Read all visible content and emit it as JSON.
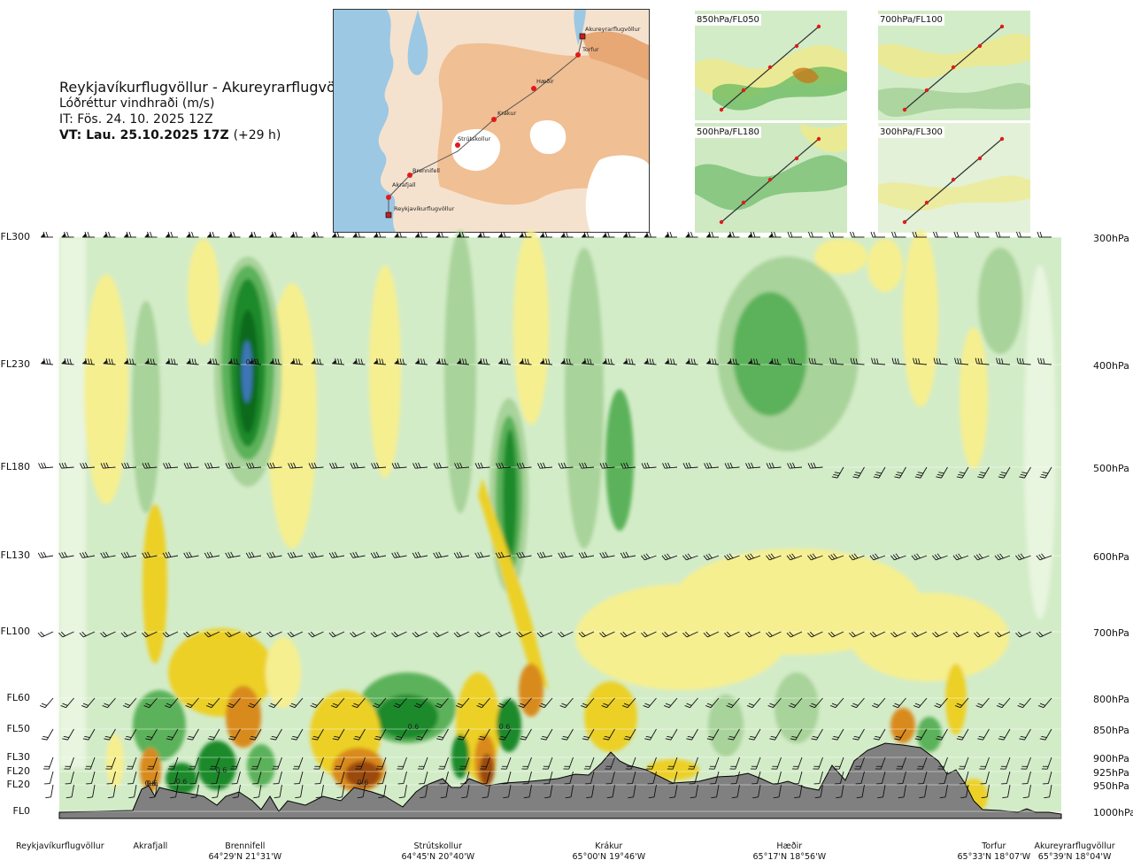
{
  "title": {
    "route": "Reykjavíkurflugvöllur - Akureyrarflugvöllur",
    "variable": "Lóðréttur vindhraði (m/s)",
    "issue_time": "IT: Fös. 24. 10. 2025 12Z",
    "valid_time": "VT: Lau. 25.10.2025 17Z",
    "lead": "(+29 h)"
  },
  "route_map": {
    "waypoints": [
      {
        "name": "Akureyrarflugvöllur",
        "type": "airport"
      },
      {
        "name": "Torfur",
        "type": "point"
      },
      {
        "name": "Hæðir",
        "type": "point"
      },
      {
        "name": "Krákur",
        "type": "point"
      },
      {
        "name": "Strútskollur",
        "type": "point"
      },
      {
        "name": "Brennifell",
        "type": "point"
      },
      {
        "name": "Akrafjall",
        "type": "point"
      },
      {
        "name": "Reykjavíkurflugvöllur",
        "type": "airport"
      }
    ],
    "colors": {
      "sea": "#9cc8e4",
      "land_low": "#f4e2cf",
      "land_high": "#eeb889",
      "glacier": "#ffffff",
      "route": "#555555",
      "marker": "#e01b1b"
    }
  },
  "mini_maps": [
    {
      "label": "850hPa/FL050"
    },
    {
      "label": "700hPa/FL100"
    },
    {
      "label": "500hPa/FL180"
    },
    {
      "label": "300hPa/FL300"
    }
  ],
  "chart_data": {
    "type": "heatmap",
    "title": "Lóðréttur vindhraði (m/s)",
    "left_axis": [
      {
        "label": "FL300",
        "hpa": 300
      },
      {
        "label": "FL230",
        "hpa": 400
      },
      {
        "label": "FL180",
        "hpa": 500
      },
      {
        "label": "FL130",
        "hpa": 600
      },
      {
        "label": "FL100",
        "hpa": 700
      },
      {
        "label": "FL60",
        "hpa": 800
      },
      {
        "label": "FL50",
        "hpa": 850
      },
      {
        "label": "FL30",
        "hpa": 900
      },
      {
        "label": "FL20",
        "hpa": 925
      },
      {
        "label": "FL20",
        "hpa": 950
      },
      {
        "label": "FL0",
        "hpa": 1000
      }
    ],
    "right_axis": [
      "300hPa",
      "400hPa",
      "500hPa",
      "600hPa",
      "700hPa",
      "800hPa",
      "850hPa",
      "900hPa",
      "925hPa",
      "950hPa",
      "1000hPa"
    ],
    "bottom_locations": [
      {
        "name": "Reykjavíkurflugvöllur",
        "coord": ""
      },
      {
        "name": "Akrafjall",
        "coord": ""
      },
      {
        "name": "Brennifell",
        "coord": "64°29'N 21°31'W"
      },
      {
        "name": "Strútskollur",
        "coord": "64°45'N 20°40'W"
      },
      {
        "name": "Krákur",
        "coord": "65°00'N 19°46'W"
      },
      {
        "name": "Hæðir",
        "coord": "65°17'N 18°56'W"
      },
      {
        "name": "Torfur",
        "coord": "65°33'N 18°07'W"
      },
      {
        "name": "Akureyrarflugvöllur",
        "coord": "65°39'N 18°04'W"
      }
    ],
    "contour_colors": {
      "strong_down": "#9b4a10",
      "down_3": "#d98a1c",
      "down_2": "#ecd028",
      "down_1": "#f6ef8f",
      "neutral": "#d3ecc8",
      "up_1": "#a8d39a",
      "up_2": "#5cb25a",
      "up_3": "#1f8a2c",
      "up_4": "#106a1e",
      "strong_up": "#3d76b8",
      "terrain": "#808080"
    },
    "annotations": [
      "0.6",
      "0.6",
      "0.6",
      "0.6",
      "0.6",
      "0.6",
      "0.6",
      "0.6"
    ]
  }
}
